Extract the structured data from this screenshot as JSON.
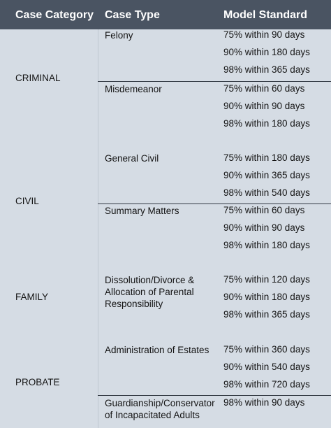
{
  "header": {
    "case_category": "Case Category",
    "case_type": "Case Type",
    "model_standard": "Model Standard"
  },
  "categories": [
    {
      "name": "CRIMINAL",
      "types": [
        {
          "name": "Felony",
          "standards": [
            "75% within 90 days",
            "90% within 180 days",
            "98% within 365 days"
          ]
        },
        {
          "name": "Misdemeanor",
          "standards": [
            "75% within 60 days",
            "90% within 90 days",
            "98% within 180 days"
          ]
        }
      ]
    },
    {
      "name": "CIVIL",
      "types": [
        {
          "name": "General Civil",
          "standards": [
            "75% within 180 days",
            "90% within 365 days",
            "98% within 540 days"
          ]
        },
        {
          "name": "Summary Matters",
          "standards": [
            "75% within 60 days",
            "90% within 90 days",
            "98% within 180 days"
          ]
        }
      ]
    },
    {
      "name": "FAMILY",
      "types": [
        {
          "name": "Dissolution/Divorce & Allocation of Parental Responsibility",
          "standards": [
            "75% within 120 days",
            "90% within 180 days",
            "98% within 365 days"
          ]
        }
      ]
    },
    {
      "name": "PROBATE",
      "types": [
        {
          "name": "Administration of Estates",
          "standards": [
            "75% within 360 days",
            "90% within 540 days",
            "98% within 720 days"
          ]
        },
        {
          "name": "Guardianship/Conservator of Incapacitated Adults",
          "standards": [
            "98% within 90 days"
          ]
        }
      ]
    }
  ]
}
